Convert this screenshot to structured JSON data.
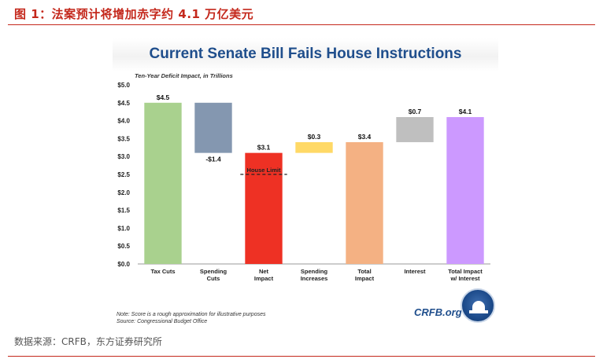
{
  "figure": {
    "title": "图 1：法案预计将增加赤字约 4.1 万亿美元",
    "source": "数据来源：CRFB，东方证券研究所"
  },
  "chart_data": {
    "type": "bar",
    "subtype": "waterfall",
    "title": "Current Senate Bill Fails House Instructions",
    "subtitle": "Ten-Year Deficit Impact, in Trillions",
    "ylim": [
      0,
      5
    ],
    "yticks": [
      "$0.0",
      "$0.5",
      "$1.0",
      "$1.5",
      "$2.0",
      "$2.5",
      "$3.0",
      "$3.5",
      "$4.0",
      "$4.5",
      "$5.0"
    ],
    "grid": false,
    "bars": [
      {
        "category": "Tax Cuts",
        "lines": [
          "Tax Cuts"
        ],
        "start": 0,
        "end": 4.5,
        "label": "$4.5",
        "color": "#a9d18e"
      },
      {
        "category": "Spending Cuts",
        "lines": [
          "Spending",
          "Cuts"
        ],
        "start": 3.1,
        "end": 4.5,
        "label": "-$1.4",
        "color": "#8497b0"
      },
      {
        "category": "Net Impact",
        "lines": [
          "Net",
          "Impact"
        ],
        "start": 0,
        "end": 3.1,
        "label": "$3.1",
        "color": "#ee3124"
      },
      {
        "category": "Spending Increases",
        "lines": [
          "Spending",
          "Increases"
        ],
        "start": 3.1,
        "end": 3.4,
        "label": "$0.3",
        "color": "#ffd966"
      },
      {
        "category": "Total Impact",
        "lines": [
          "Total",
          "Impact"
        ],
        "start": 0,
        "end": 3.4,
        "label": "$3.4",
        "color": "#f4b183"
      },
      {
        "category": "Interest",
        "lines": [
          "Interest"
        ],
        "start": 3.4,
        "end": 4.1,
        "label": "$0.7",
        "color": "#bfbfbf"
      },
      {
        "category": "Total Impact w/ Interest",
        "lines": [
          "Total Impact",
          "w/ Interest"
        ],
        "start": 0,
        "end": 4.1,
        "label": "$4.1",
        "color": "#cc99ff"
      }
    ],
    "annotation": {
      "text": "House Limit",
      "value": 2.5
    },
    "notes": [
      "Note: Score is a rough approximation for illustrative purposes",
      "Source: Congressional Budget Office"
    ],
    "logo": "CRFB.org"
  }
}
